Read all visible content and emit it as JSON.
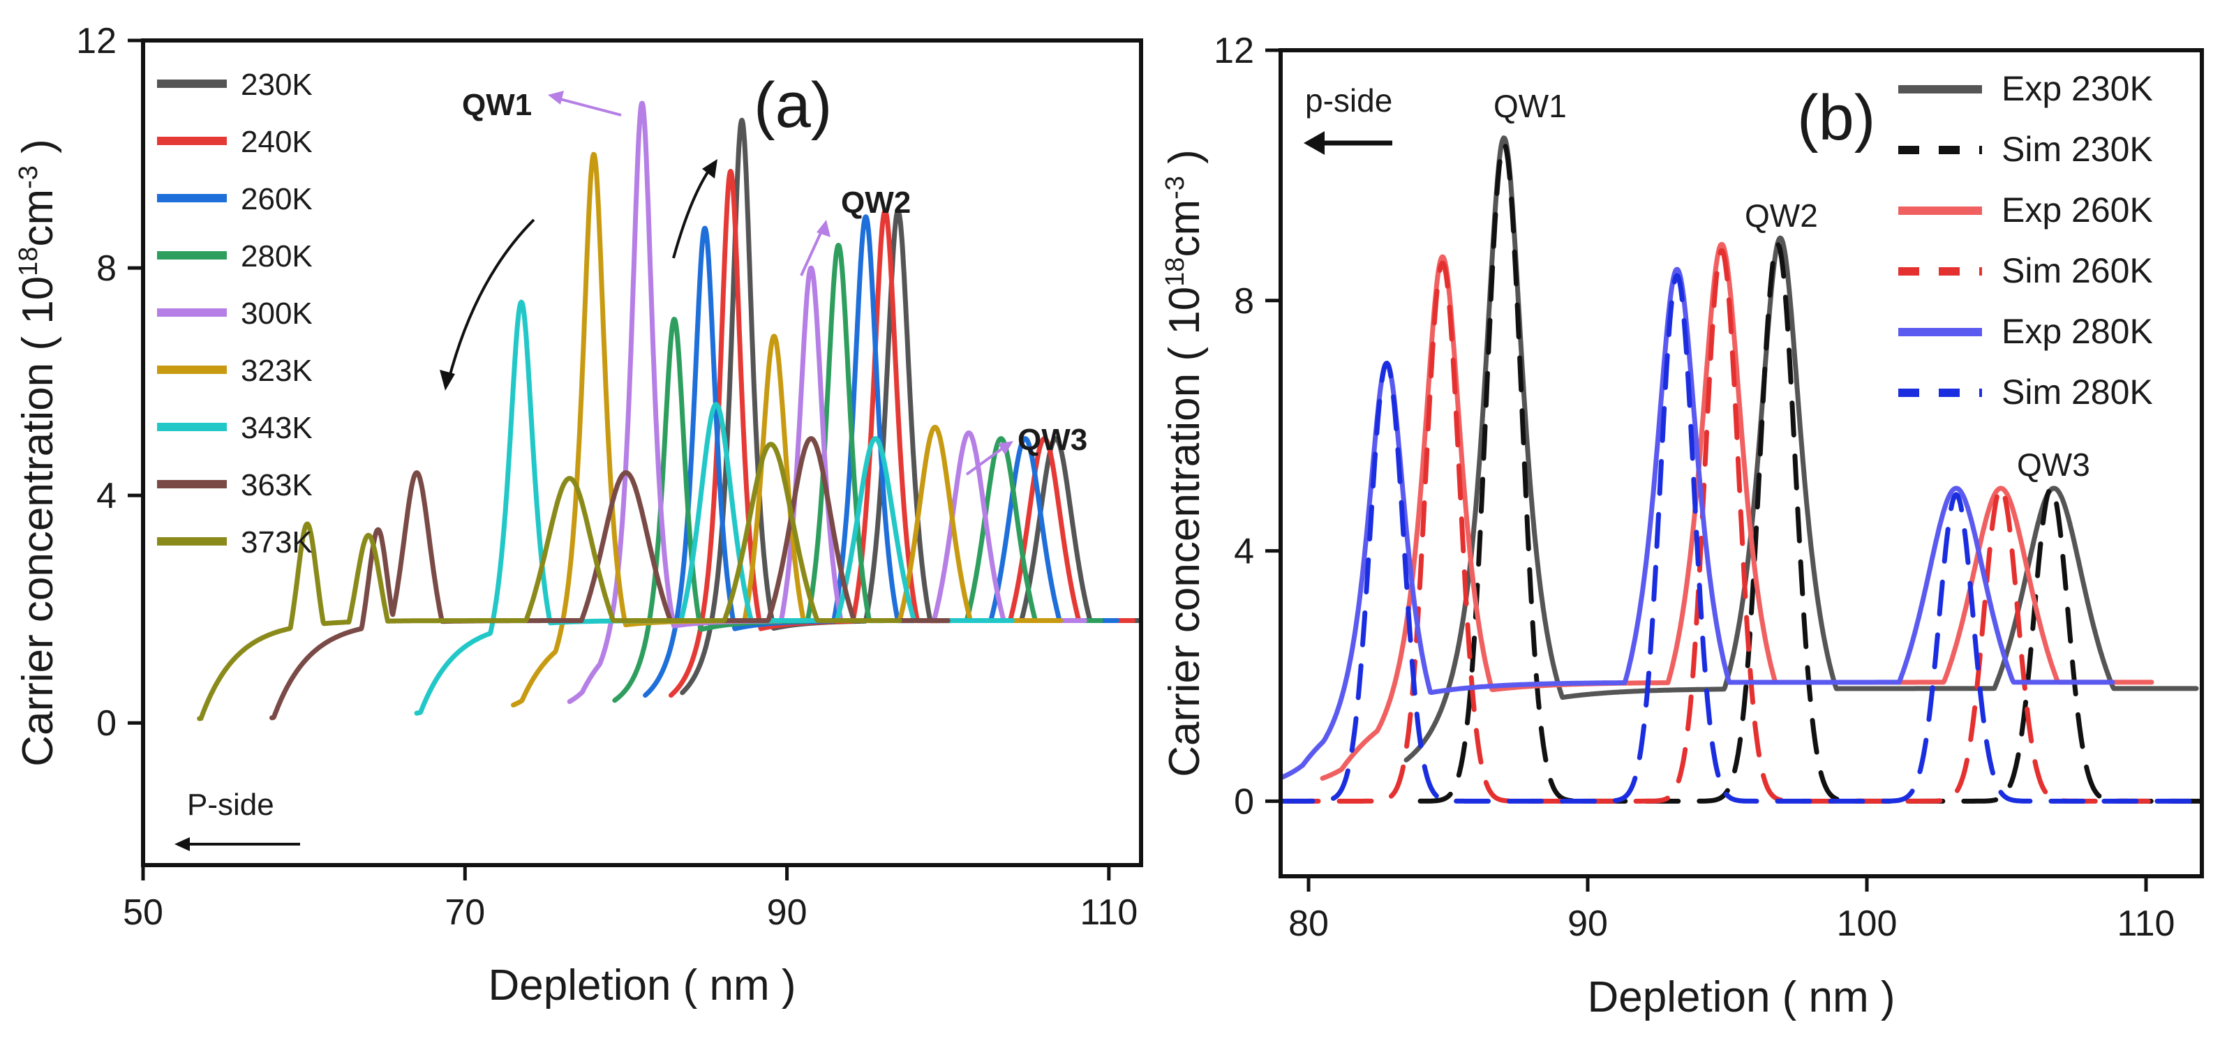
{
  "chart_data": [
    {
      "type": "line",
      "panel_label": "(a)",
      "xlabel": "Depletion ( nm )",
      "ylabel": "Carrier concentration ( 10",
      "ylabel_exp": "18",
      "ylabel_unit": "cm",
      "ylabel_unit_exp": "-3",
      "ylabel_close": ")",
      "xlim": [
        50,
        112
      ],
      "ylim": [
        -2.5,
        12
      ],
      "xticks": [
        50,
        70,
        90,
        110
      ],
      "yticks": [
        0,
        4,
        8,
        12
      ],
      "legend_position": "top-left",
      "series": [
        {
          "name": "230K",
          "color": "#555555",
          "shift": 0,
          "peaks": [
            {
              "x": 87.2,
              "h": 10.6,
              "w": 0.85
            },
            {
              "x": 96.9,
              "h": 9.0,
              "w": 1.0
            },
            {
              "x": 106.7,
              "h": 5.0,
              "w": 1.6
            }
          ],
          "x_range": [
            83.5,
            112
          ]
        },
        {
          "name": "240K",
          "color": "#e53935",
          "peaks": [
            {
              "x": 86.5,
              "h": 9.7,
              "w": 0.85
            },
            {
              "x": 96.1,
              "h": 9.0,
              "w": 1.0
            },
            {
              "x": 106.0,
              "h": 5.0,
              "w": 1.6
            }
          ],
          "x_range": [
            82.8,
            111.5
          ]
        },
        {
          "name": "260K",
          "color": "#1e6fd9",
          "peaks": [
            {
              "x": 84.9,
              "h": 8.7,
              "w": 0.9
            },
            {
              "x": 94.9,
              "h": 8.9,
              "w": 1.0
            },
            {
              "x": 104.8,
              "h": 5.0,
              "w": 1.6
            }
          ],
          "x_range": [
            81.2,
            110.5
          ]
        },
        {
          "name": "280K",
          "color": "#2e9e5e",
          "peaks": [
            {
              "x": 83.0,
              "h": 7.1,
              "w": 0.9
            },
            {
              "x": 93.2,
              "h": 8.4,
              "w": 1.0
            },
            {
              "x": 103.3,
              "h": 5.0,
              "w": 1.6
            }
          ],
          "x_range": [
            79.3,
            109.5
          ]
        },
        {
          "name": "300K",
          "color": "#b57fe6",
          "peaks": [
            {
              "x": 81.0,
              "h": 10.9,
              "w": 0.85
            },
            {
              "x": 91.5,
              "h": 8.0,
              "w": 1.0
            },
            {
              "x": 101.3,
              "h": 5.1,
              "w": 1.6
            }
          ],
          "x_range": [
            76.5,
            108.5
          ]
        },
        {
          "name": "323K",
          "color": "#c89a12",
          "peaks": [
            {
              "x": 78.0,
              "h": 10.0,
              "w": 0.9
            },
            {
              "x": 89.2,
              "h": 6.8,
              "w": 1.1
            },
            {
              "x": 99.2,
              "h": 5.2,
              "w": 1.6
            }
          ],
          "x_range": [
            73.0,
            107.0
          ]
        },
        {
          "name": "343K",
          "color": "#22c7c7",
          "peaks": [
            {
              "x": 73.5,
              "h": 7.4,
              "w": 1.0
            },
            {
              "x": 85.6,
              "h": 5.6,
              "w": 1.5
            },
            {
              "x": 95.5,
              "h": 5.0,
              "w": 1.8
            }
          ],
          "x_range": [
            67.0,
            104.0
          ]
        },
        {
          "name": "363K",
          "color": "#7a4a46",
          "peaks": [
            {
              "x": 67.0,
              "h": 4.4,
              "w": 1.3
            },
            {
              "x": 64.6,
              "h": 3.4,
              "w": 1.0
            },
            {
              "x": 80.0,
              "h": 4.4,
              "w": 2.3
            },
            {
              "x": 91.5,
              "h": 5.0,
              "w": 2.0
            }
          ],
          "x_range": [
            58.0,
            100.0
          ]
        },
        {
          "name": "373K",
          "color": "#8a8a1a",
          "peaks": [
            {
              "x": 60.2,
              "h": 3.5,
              "w": 1.0
            },
            {
              "x": 64.0,
              "h": 3.3,
              "w": 1.3
            },
            {
              "x": 76.5,
              "h": 4.3,
              "w": 2.3
            },
            {
              "x": 89.0,
              "h": 4.9,
              "w": 2.2
            }
          ],
          "x_range": [
            53.5,
            97.0
          ]
        }
      ],
      "annotations": {
        "qw1": "QW1",
        "qw2": "QW2",
        "qw3": "QW3",
        "pside": "P-side"
      }
    },
    {
      "type": "line",
      "panel_label": "(b)",
      "xlabel": "Depletion ( nm )",
      "ylabel": "Carrier concentration ( 10",
      "ylabel_exp": "18",
      "ylabel_unit": "cm",
      "ylabel_unit_exp": "-3",
      "ylabel_close": ")",
      "xlim": [
        79,
        112
      ],
      "ylim": [
        -1.2,
        12
      ],
      "xticks": [
        80,
        90,
        100,
        110
      ],
      "yticks": [
        0,
        4,
        8,
        12
      ],
      "legend_position": "top-right",
      "series": [
        {
          "name": "Exp 230K",
          "color": "#555555",
          "dash": false,
          "peaks": [
            {
              "x": 87.0,
              "h": 10.6,
              "w": 0.9
            },
            {
              "x": 96.9,
              "h": 9.0,
              "w": 1.0
            },
            {
              "x": 106.7,
              "h": 5.0,
              "w": 1.6
            }
          ],
          "x_range": [
            83.5,
            111.8
          ],
          "baseline": 1.8
        },
        {
          "name": "Sim 230K",
          "color": "#111111",
          "dash": true,
          "peaks": [
            {
              "x": 87.0,
              "h": 10.5,
              "w": 0.9
            },
            {
              "x": 96.8,
              "h": 8.9,
              "w": 0.9
            },
            {
              "x": 106.6,
              "h": 5.0,
              "w": 0.85
            }
          ],
          "x_range": [
            84.0,
            112.0
          ],
          "baseline": 0
        },
        {
          "name": "Exp 260K",
          "color": "#f06060",
          "dash": false,
          "peaks": [
            {
              "x": 84.8,
              "h": 8.7,
              "w": 0.9
            },
            {
              "x": 94.8,
              "h": 8.9,
              "w": 1.0
            },
            {
              "x": 104.8,
              "h": 5.0,
              "w": 1.6
            }
          ],
          "x_range": [
            80.5,
            110.2
          ],
          "baseline": 1.9
        },
        {
          "name": "Sim 260K",
          "color": "#e53030",
          "dash": true,
          "peaks": [
            {
              "x": 84.8,
              "h": 8.6,
              "w": 0.85
            },
            {
              "x": 94.8,
              "h": 8.8,
              "w": 0.85
            },
            {
              "x": 104.8,
              "h": 5.0,
              "w": 0.85
            }
          ],
          "x_range": [
            79.2,
            111.0
          ],
          "baseline": 0
        },
        {
          "name": "Exp 280K",
          "color": "#5a5af0",
          "dash": false,
          "peaks": [
            {
              "x": 82.8,
              "h": 7.0,
              "w": 0.9
            },
            {
              "x": 93.2,
              "h": 8.5,
              "w": 1.0
            },
            {
              "x": 103.2,
              "h": 5.0,
              "w": 1.6
            }
          ],
          "x_range": [
            79.0,
            108.8
          ],
          "baseline": 1.9
        },
        {
          "name": "Sim 280K",
          "color": "#1a2ee0",
          "dash": true,
          "peaks": [
            {
              "x": 82.8,
              "h": 7.0,
              "w": 0.85
            },
            {
              "x": 93.2,
              "h": 8.4,
              "w": 0.85
            },
            {
              "x": 103.2,
              "h": 4.9,
              "w": 0.85
            }
          ],
          "x_range": [
            79.0,
            112.0
          ],
          "baseline": 0
        }
      ],
      "annotations": {
        "qw1": "QW1",
        "qw2": "QW2",
        "qw3": "QW3",
        "pside": "p-side"
      }
    }
  ]
}
